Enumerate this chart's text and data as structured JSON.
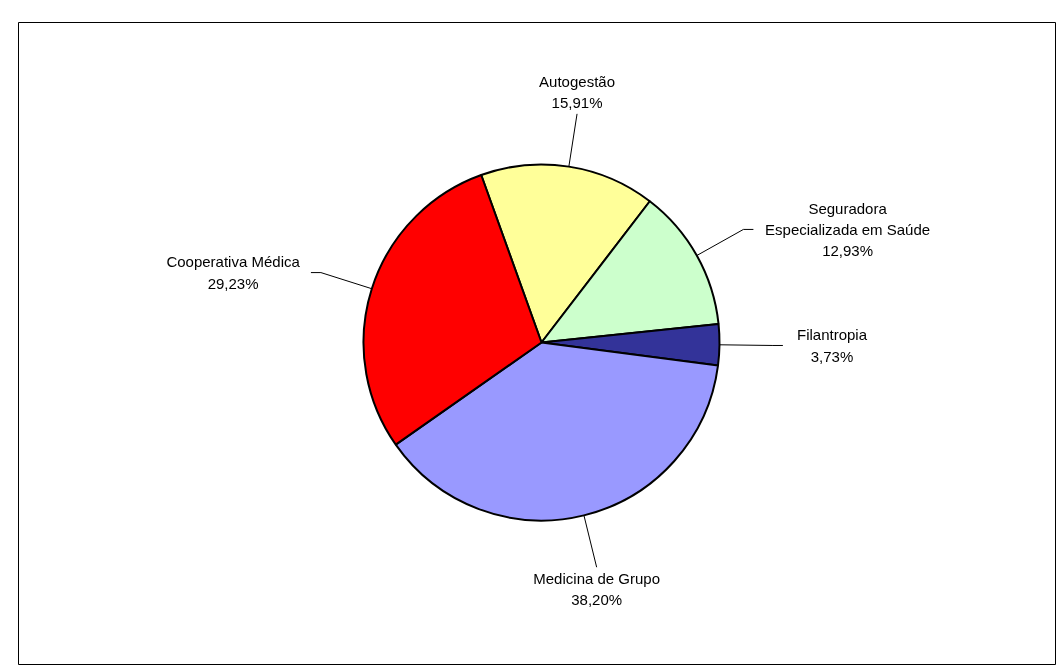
{
  "chart_data": {
    "type": "pie",
    "categories": [
      "Autogestão",
      "Seguradora Especializada em Saúde",
      "Filantropia",
      "Medicina de Grupo",
      "Cooperativa Médica"
    ],
    "values": [
      15.91,
      12.93,
      3.73,
      38.2,
      29.23
    ],
    "value_labels": [
      "15,91%",
      "12,93%",
      "3,73%",
      "38,20%",
      "29,23%"
    ],
    "colors": [
      "#ffff99",
      "#ccffcc",
      "#333399",
      "#9999ff",
      "#ff0000"
    ]
  }
}
